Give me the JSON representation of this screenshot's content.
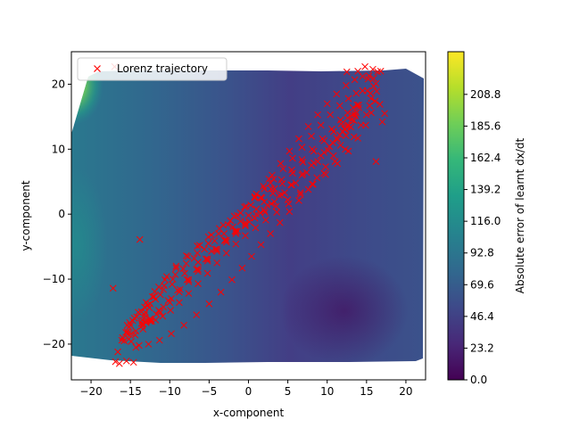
{
  "chart_data": {
    "type": "scatter",
    "xlabel": "x-component",
    "ylabel": "y-component",
    "xlim": [
      -22.5,
      22.5
    ],
    "ylim": [
      -25.5,
      25
    ],
    "xticks": [
      -20,
      -15,
      -10,
      -5,
      0,
      5,
      10,
      15,
      20
    ],
    "yticks": [
      -20,
      -10,
      0,
      10,
      20
    ],
    "grid": false,
    "legend": {
      "placement": "top-left",
      "entries": [
        {
          "label": "Lorenz trajectory",
          "marker": "x",
          "color": "#ff0000"
        }
      ]
    },
    "series": [
      {
        "name": "Lorenz trajectory",
        "marker": "x",
        "color": "#ff0000",
        "x": [
          -14.9,
          -13.9,
          -12.7,
          -11.3,
          -9.8,
          -8.2,
          -6.6,
          -5.0,
          -3.5,
          -2.1,
          -0.8,
          0.4,
          1.6,
          2.8,
          4.0,
          5.2,
          6.4,
          7.6,
          8.7,
          9.8,
          10.8,
          11.7,
          12.4,
          13.0,
          13.4,
          13.6,
          13.5,
          13.2,
          12.6,
          11.8,
          10.8,
          9.6,
          8.3,
          6.9,
          5.6,
          4.3,
          3.1,
          2.0,
          1.0,
          0.0,
          -1.0,
          -2.0,
          -3.1,
          -4.3,
          -5.6,
          -6.9,
          -8.3,
          -9.6,
          -10.8,
          -11.8,
          -12.6,
          -13.2,
          -13.5,
          -13.6,
          -13.4,
          -13.0,
          -12.4,
          -11.7,
          -10.8,
          -9.8,
          -8.7,
          -7.6,
          -6.4,
          -5.2,
          -4.0,
          -2.8,
          -1.6,
          -0.4,
          0.8,
          2.1,
          3.5,
          5.0,
          6.6,
          8.2,
          9.8,
          11.3,
          12.7,
          13.9,
          14.9,
          15.6,
          16.1,
          16.3,
          16.2,
          15.9,
          15.3,
          14.5,
          13.5,
          12.4,
          11.2,
          10.0,
          8.8,
          7.6,
          6.4,
          5.2,
          4.1,
          3.0,
          1.9,
          0.8,
          -0.3,
          -1.4,
          -2.6,
          -3.8,
          -5.1,
          -6.5,
          -7.9,
          -9.3,
          -10.7,
          -12.0,
          -13.2,
          -14.2,
          -15.0,
          -15.6,
          -16.0,
          -16.1,
          -15.8,
          -15.2,
          -14.4,
          -13.4,
          -12.3,
          -11.2,
          -10.0,
          -8.8,
          -7.6,
          -6.4,
          -5.2,
          -4.0,
          -2.8,
          -1.6,
          -0.4,
          0.8,
          2.0,
          3.3,
          4.6,
          6.0,
          7.4,
          8.8,
          10.1,
          11.3,
          12.3,
          13.1,
          13.7,
          14.0,
          14.0,
          13.8,
          13.3,
          12.6,
          11.7,
          10.6,
          9.4,
          8.1,
          6.8,
          5.5,
          4.2,
          2.9,
          1.6,
          0.3,
          -1.0,
          -2.3,
          -3.7,
          -5.1,
          -6.5,
          -7.9,
          -9.2,
          -10.4,
          -11.4,
          -12.2,
          -12.8,
          -13.1,
          -13.2,
          -13.0,
          -12.5,
          -11.8,
          -10.9,
          -9.9,
          -8.8,
          -7.6,
          -6.4,
          -5.2,
          -4.0,
          -2.8,
          -1.6,
          -0.4,
          0.9,
          2.2,
          3.6,
          5.1,
          6.6,
          8.1,
          9.6,
          11.0,
          12.3,
          13.4,
          14.3,
          15.0,
          15.4,
          15.6,
          15.5,
          15.1,
          14.5,
          13.7,
          12.7,
          11.6,
          10.4,
          9.2,
          8.0,
          6.8,
          5.6,
          4.4,
          3.2,
          2.0,
          0.8,
          -0.5,
          -1.8,
          -3.2,
          -4.7,
          -6.2,
          -7.7,
          -9.2,
          -10.6,
          -11.9,
          -13.0,
          -14.0,
          -14.7,
          -15.2,
          -15.4,
          -15.3,
          -14.9,
          -14.3,
          -13.5,
          -12.5,
          -11.4,
          -10.2,
          -9.0,
          -7.8,
          -6.6,
          -5.4,
          -4.2,
          -3.0,
          -1.7,
          -0.4,
          1.0,
          2.4,
          3.9,
          5.4,
          6.9,
          8.3,
          9.6,
          10.7,
          11.6,
          12.2,
          12.6,
          12.7,
          12.5,
          12.0,
          11.2,
          10.3,
          9.2,
          8.0,
          6.8,
          5.5,
          4.2,
          2.9,
          1.5,
          0.1,
          -1.4,
          -3.0,
          -4.7,
          -6.4,
          -8.1,
          -9.7,
          -11.2,
          -12.5,
          -13.6,
          -14.5,
          -15.1,
          -15.4,
          -16.6,
          -16.9,
          -16.4,
          -15.5,
          -14.6,
          -13.8,
          -14.3,
          -17.2,
          -17.0,
          16.8,
          14.8,
          15.8,
          16.4,
          12.5,
          13.9,
          15.2,
          15.9,
          16.7,
          17.3,
          17.0,
          16.2,
          3.3,
          2.8,
          1.7,
          2.6,
          1.0
        ],
        "y": [
          -19.6,
          -20.2,
          -20.0,
          -19.4,
          -18.4,
          -17.1,
          -15.5,
          -13.8,
          -12.0,
          -10.1,
          -8.3,
          -6.5,
          -4.7,
          -3.0,
          -1.3,
          0.4,
          2.1,
          3.8,
          5.6,
          7.3,
          9.0,
          10.6,
          12.1,
          13.4,
          14.4,
          15.1,
          15.4,
          15.3,
          14.8,
          13.9,
          12.7,
          11.3,
          9.7,
          8.0,
          6.3,
          4.7,
          3.2,
          1.9,
          0.8,
          -0.2,
          -1.1,
          -2.0,
          -3.0,
          -4.1,
          -5.4,
          -6.8,
          -8.4,
          -10.0,
          -11.6,
          -13.1,
          -14.4,
          -15.5,
          -16.3,
          -16.8,
          -16.9,
          -16.7,
          -16.2,
          -15.4,
          -14.3,
          -13.0,
          -11.6,
          -10.1,
          -8.5,
          -6.9,
          -5.4,
          -4.0,
          -2.7,
          -1.6,
          -0.6,
          0.3,
          1.2,
          2.2,
          3.3,
          4.6,
          6.1,
          7.8,
          9.7,
          11.7,
          13.7,
          15.6,
          17.4,
          18.9,
          20.1,
          20.9,
          21.3,
          21.2,
          20.7,
          19.8,
          18.5,
          17.0,
          15.3,
          13.5,
          11.6,
          9.7,
          7.8,
          6.0,
          4.3,
          2.7,
          1.2,
          -0.2,
          -1.6,
          -3.0,
          -4.5,
          -6.0,
          -7.6,
          -9.3,
          -11.0,
          -12.7,
          -14.3,
          -15.8,
          -17.1,
          -18.2,
          -19.0,
          -19.4,
          -19.5,
          -19.2,
          -18.6,
          -17.7,
          -16.5,
          -15.1,
          -13.6,
          -12.0,
          -10.4,
          -8.8,
          -7.2,
          -5.7,
          -4.3,
          -3.0,
          -1.8,
          -0.6,
          0.6,
          1.9,
          3.3,
          4.8,
          6.4,
          8.1,
          9.8,
          11.5,
          13.1,
          14.5,
          15.6,
          16.4,
          16.8,
          16.8,
          16.4,
          15.6,
          14.5,
          13.1,
          11.6,
          10.0,
          8.4,
          6.8,
          5.3,
          3.9,
          2.6,
          1.4,
          0.2,
          -1.0,
          -2.2,
          -3.5,
          -4.9,
          -6.4,
          -8.0,
          -9.6,
          -11.2,
          -12.7,
          -14.0,
          -15.1,
          -15.9,
          -16.4,
          -16.5,
          -16.3,
          -15.7,
          -14.8,
          -13.6,
          -12.2,
          -10.7,
          -9.1,
          -7.5,
          -6.0,
          -4.6,
          -3.3,
          -2.1,
          -0.9,
          0.3,
          1.6,
          3.0,
          4.6,
          6.3,
          8.1,
          10.0,
          11.9,
          13.7,
          15.3,
          16.7,
          17.8,
          18.6,
          19.0,
          19.0,
          18.6,
          17.8,
          16.7,
          15.3,
          13.7,
          12.0,
          10.3,
          8.6,
          7.0,
          5.4,
          3.9,
          2.5,
          1.1,
          -0.3,
          -1.7,
          -3.2,
          -4.8,
          -6.5,
          -8.3,
          -10.1,
          -11.9,
          -13.6,
          -15.1,
          -16.4,
          -17.4,
          -18.1,
          -18.4,
          -18.4,
          -18.0,
          -17.2,
          -16.1,
          -14.8,
          -13.3,
          -11.7,
          -10.1,
          -8.5,
          -6.9,
          -5.4,
          -4.0,
          -2.6,
          -1.3,
          0.0,
          1.4,
          2.9,
          4.5,
          6.2,
          7.9,
          9.5,
          11.0,
          12.2,
          13.1,
          13.6,
          13.7,
          13.4,
          12.7,
          11.7,
          10.4,
          9.0,
          7.5,
          6.0,
          4.5,
          3.0,
          1.6,
          0.2,
          -1.2,
          -2.6,
          -4.1,
          -5.7,
          -7.4,
          -9.1,
          -10.8,
          -12.4,
          -13.8,
          -15.0,
          -16.0,
          -16.7,
          -17.1,
          -21.2,
          -22.7,
          -23.0,
          -22.6,
          -22.8,
          -3.9,
          -20.5,
          -11.4,
          22.7,
          22.0,
          22.7,
          22.3,
          21.9,
          21.9,
          22.0,
          20.8,
          19.7,
          16.9,
          15.5,
          14.2,
          8.1,
          3.9,
          4.8,
          2.5,
          5.4,
          3.1
        ]
      }
    ],
    "background": {
      "type": "heatmap",
      "colormap": "viridis",
      "scale_range": [
        0.0,
        240.0
      ],
      "colorbar": {
        "label": "Absolute error of learnt dx/dt",
        "ticks": [
          0.0,
          23.2,
          46.4,
          69.6,
          92.8,
          116.0,
          139.2,
          162.4,
          185.6,
          208.8
        ]
      }
    }
  }
}
